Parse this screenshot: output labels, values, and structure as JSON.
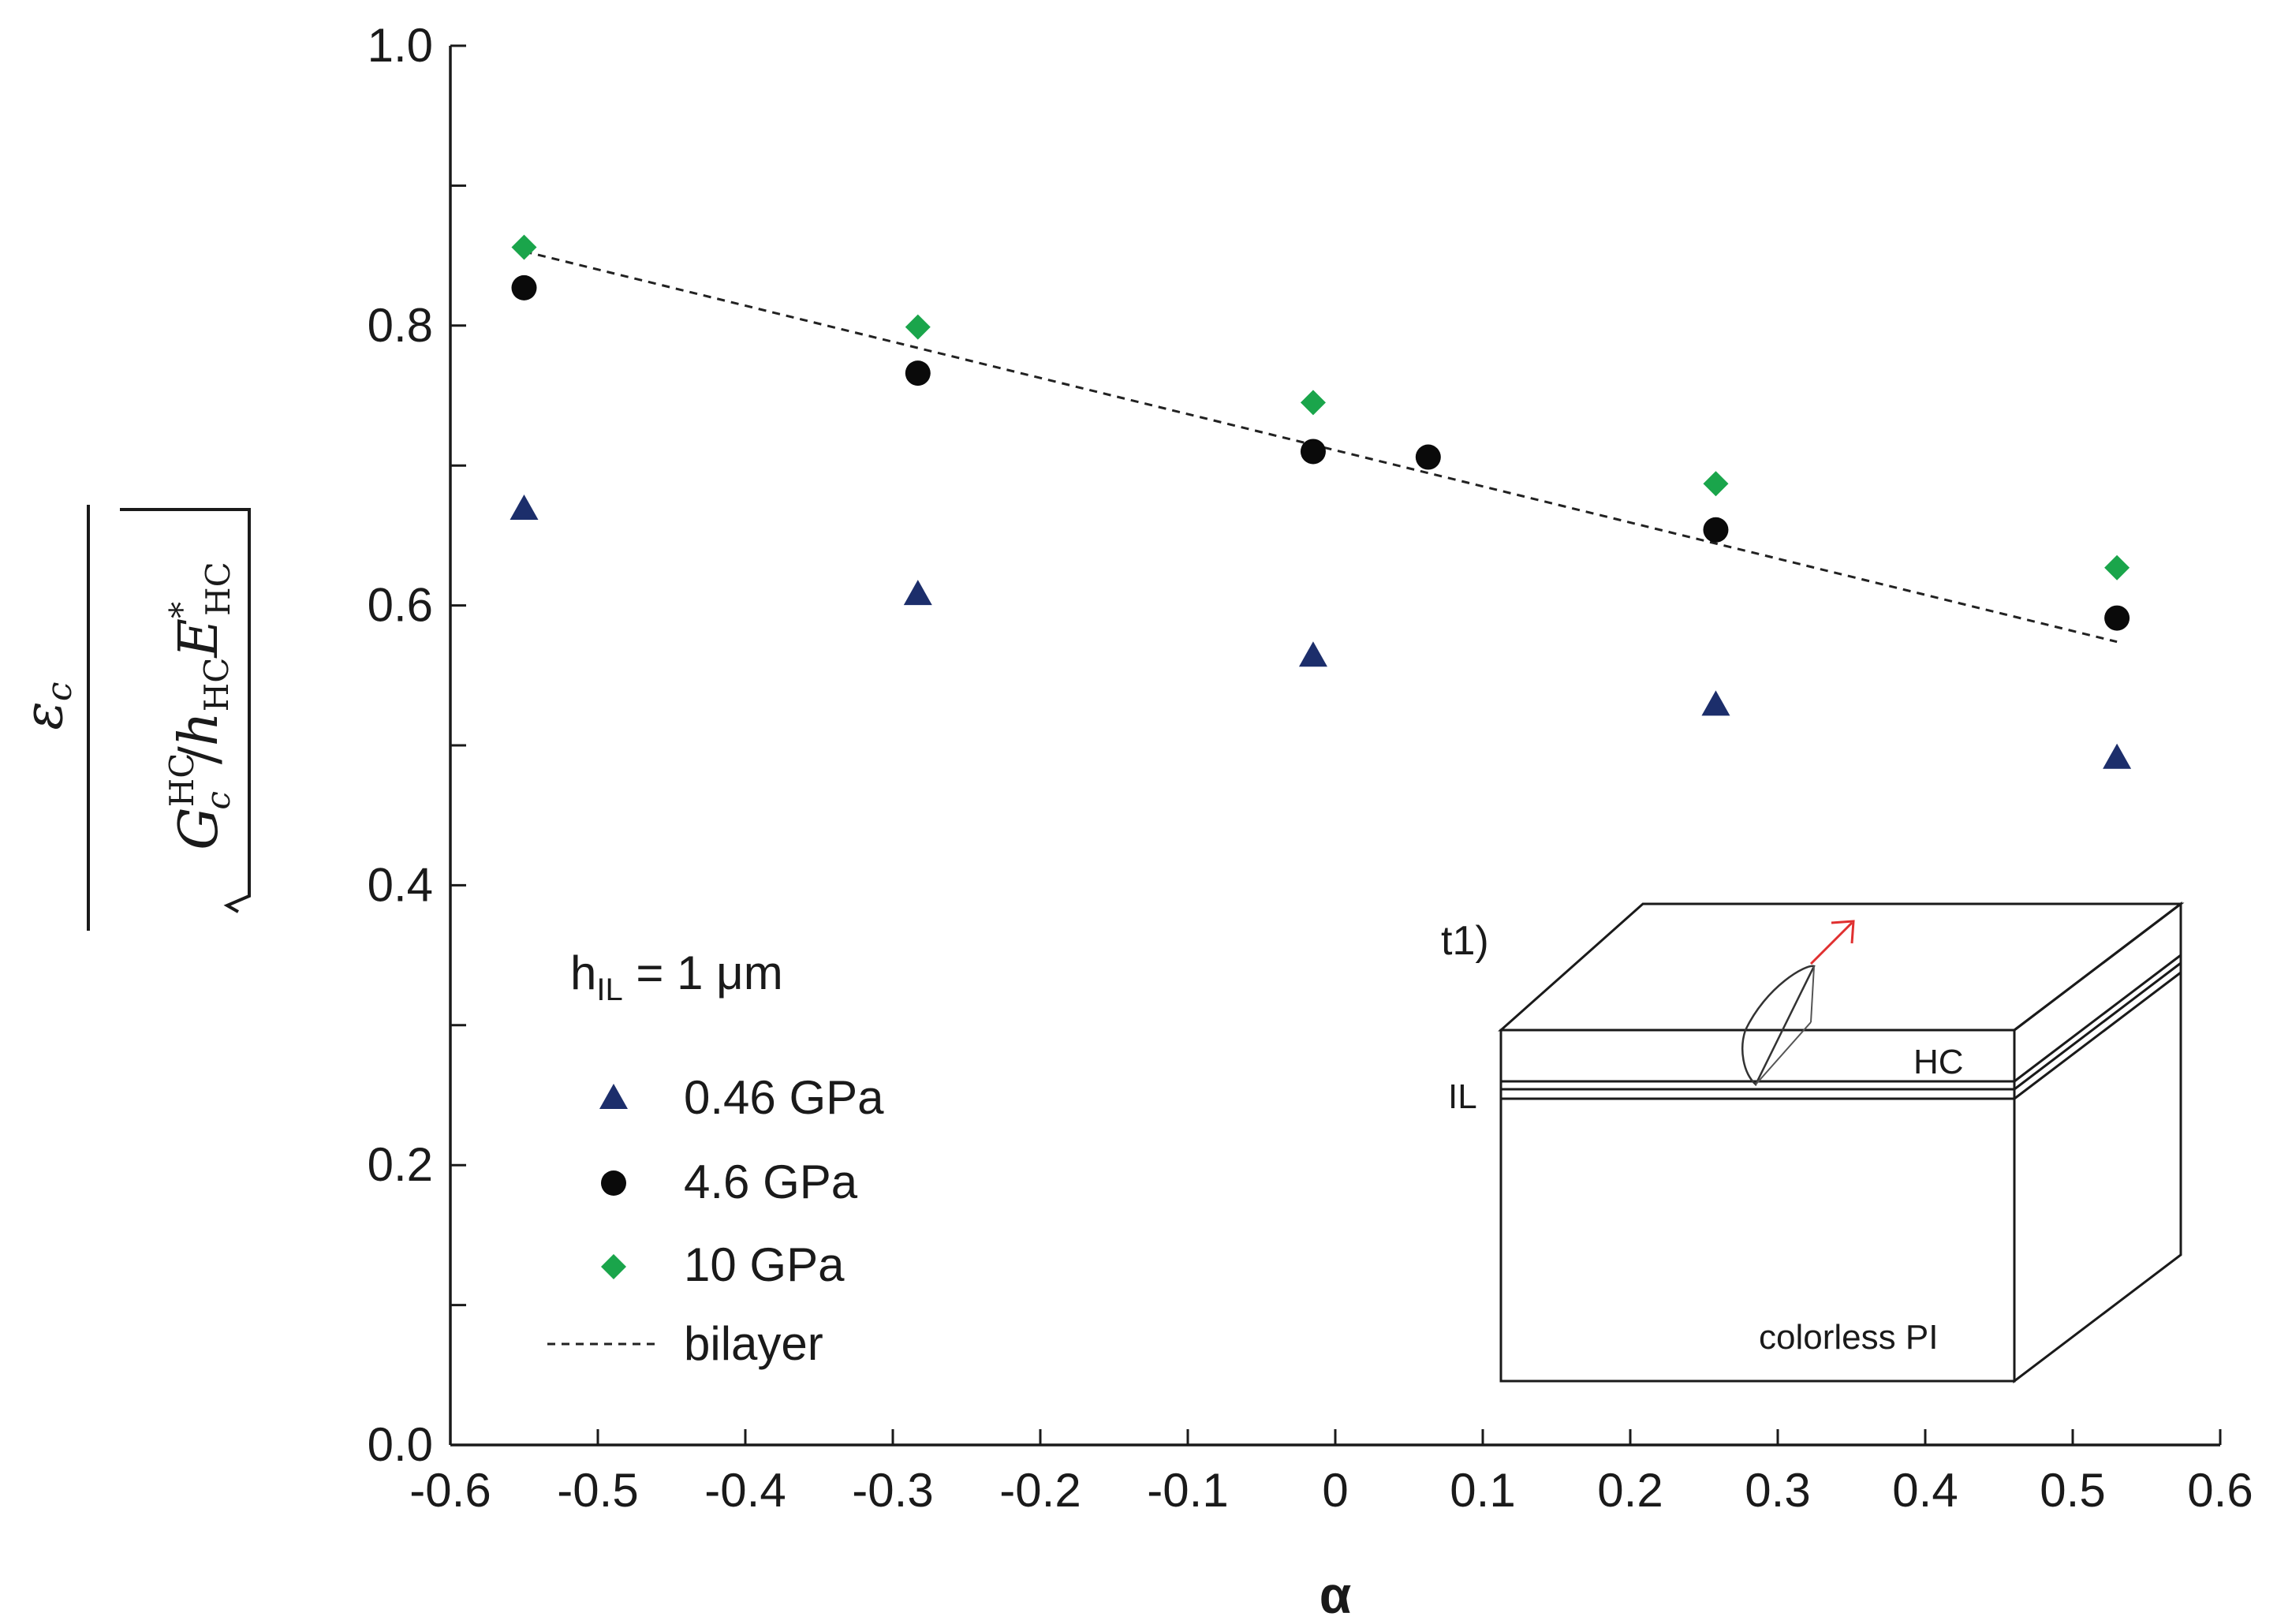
{
  "chart_data": {
    "type": "scatter",
    "title": "",
    "xlabel": "α",
    "ylabel": {
      "numerator": "ε",
      "numerator_sub": "c",
      "G": "G",
      "G_sub": "c",
      "G_sup": "HC",
      "slash": "/",
      "h": "h",
      "h_sub": "HC",
      "E": "E",
      "E_sup": "*",
      "E_sub": "HC"
    },
    "xlim": [
      -0.6,
      0.6
    ],
    "ylim": [
      0.0,
      1.0
    ],
    "xticks": [
      -0.6,
      -0.5,
      -0.4,
      -0.3,
      -0.2,
      -0.1,
      0,
      0.1,
      0.2,
      0.3,
      0.4,
      0.5,
      0.6
    ],
    "xtick_labels": [
      "-0.6",
      "-0.5",
      "-0.4",
      "-0.3",
      "-0.2",
      "-0.1",
      "0",
      "0.1",
      "0.2",
      "0.3",
      "0.4",
      "0.5",
      "0.6"
    ],
    "yticks": [
      0.0,
      0.1,
      0.2,
      0.3,
      0.4,
      0.5,
      0.6,
      0.7,
      0.8,
      0.9,
      1.0
    ],
    "ytick_labels": [
      "0.0",
      "",
      "0.2",
      "",
      "0.4",
      "",
      "0.6",
      "",
      "0.8",
      "",
      "1.0"
    ],
    "grid": false,
    "legend_placement": "left-middle",
    "legend_header": {
      "h": "h",
      "sub": "IL",
      "rest": " = 1 μm"
    },
    "series": [
      {
        "name": "0.46 GPa",
        "marker": "triangle",
        "color": "#1c2e6b",
        "x": [
          -0.55,
          -0.283,
          -0.015,
          0.258,
          0.53
        ],
        "y": [
          0.668,
          0.607,
          0.563,
          0.528,
          0.49
        ]
      },
      {
        "name": "4.6 GPa",
        "marker": "circle",
        "color": "#0a0a0a",
        "x": [
          -0.55,
          -0.283,
          -0.015,
          0.063,
          0.258,
          0.53
        ],
        "y": [
          0.827,
          0.766,
          0.71,
          0.706,
          0.654,
          0.591
        ]
      },
      {
        "name": "10 GPa",
        "marker": "diamond",
        "color": "#1aa54b",
        "x": [
          -0.55,
          -0.283,
          -0.015,
          0.258,
          0.53
        ],
        "y": [
          0.856,
          0.799,
          0.745,
          0.687,
          0.627
        ]
      },
      {
        "name": "bilayer",
        "marker": "dashed-line",
        "color": "#222222",
        "x": [
          -0.55,
          0.53
        ],
        "y": [
          0.853,
          0.574
        ]
      }
    ],
    "inset": {
      "label": "t1)",
      "layers": [
        "HC",
        "IL",
        "colorless PI"
      ],
      "arrow_color": "#e03030"
    }
  }
}
